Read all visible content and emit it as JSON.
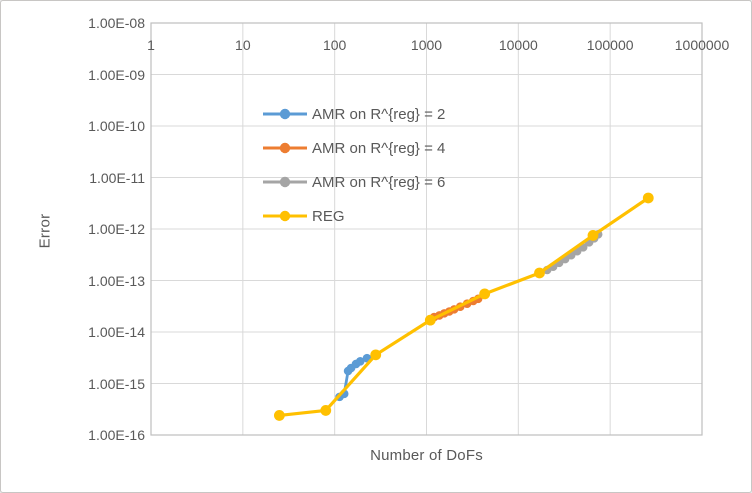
{
  "window": {
    "background": "#ffffff",
    "border_color": "#c8c6c4"
  },
  "styles": {
    "text_color": "#595959",
    "gridline_color": "#d9d9d9",
    "axis_line_color": "#bfbfbf"
  },
  "chart_data": {
    "type": "line",
    "scale": "log-log",
    "title": "",
    "xlabel": "Number of DoFs",
    "ylabel": "Error",
    "xlim": [
      1,
      1000000
    ],
    "ylim": [
      1e-16,
      1e-08
    ],
    "grid": true,
    "legend_position": "inside-top-left",
    "x_tick_labels": [
      "1",
      "10",
      "100",
      "1000",
      "10000",
      "100000",
      "1000000"
    ],
    "x_tick_values": [
      1,
      10,
      100,
      1000,
      10000,
      100000,
      1000000
    ],
    "y_tick_labels": [
      "1.00E-08",
      "1.00E-09",
      "1.00E-10",
      "1.00E-11",
      "1.00E-12",
      "1.00E-13",
      "1.00E-14",
      "1.00E-15",
      "1.00E-16"
    ],
    "y_tick_values": [
      1e-08,
      1e-09,
      1e-10,
      1e-11,
      1e-12,
      1e-13,
      1e-14,
      1e-15,
      1e-16
    ],
    "series": [
      {
        "name": "AMR on R^{reg} = 2",
        "color": "#5B9BD5",
        "marker_radius": 4.3,
        "line_width": 2.8,
        "x": [
          113,
          127,
          140,
          151,
          171,
          190,
          225
        ],
        "y": [
          5.5e-16,
          6.3e-16,
          1.75e-15,
          2e-15,
          2.4e-15,
          2.7e-15,
          3.1e-15
        ]
      },
      {
        "name": "AMR on R^{reg} = 4",
        "color": "#ED7D31",
        "marker_radius": 4.3,
        "line_width": 2.8,
        "x": [
          1210,
          1380,
          1560,
          1770,
          2000,
          2330,
          2770,
          3230,
          3650
        ],
        "y": [
          1.95e-14,
          2.1e-14,
          2.3e-14,
          2.5e-14,
          2.75e-14,
          3.1e-14,
          3.55e-14,
          4e-14,
          4.4e-14
        ]
      },
      {
        "name": "AMR on R^{reg} = 6",
        "color": "#A5A5A5",
        "marker_radius": 4.3,
        "line_width": 2.8,
        "x": [
          20600,
          23900,
          27800,
          32300,
          37600,
          43700,
          50800,
          59000,
          67000,
          74000
        ],
        "y": [
          1.6e-13,
          1.85e-13,
          2.2e-13,
          2.6e-13,
          3.1e-13,
          3.7e-13,
          4.4e-13,
          5.5e-13,
          6.6e-13,
          7.9e-13
        ]
      },
      {
        "name": "REG",
        "color": "#FFC000",
        "marker_radius": 5.4,
        "line_width": 3.2,
        "x": [
          25,
          80,
          280,
          1100,
          4300,
          17000,
          65000,
          260000
        ],
        "y": [
          2.4e-16,
          3e-16,
          3.6e-15,
          1.7e-14,
          5.5e-14,
          1.4e-13,
          7.5e-13,
          4e-12
        ]
      }
    ]
  }
}
